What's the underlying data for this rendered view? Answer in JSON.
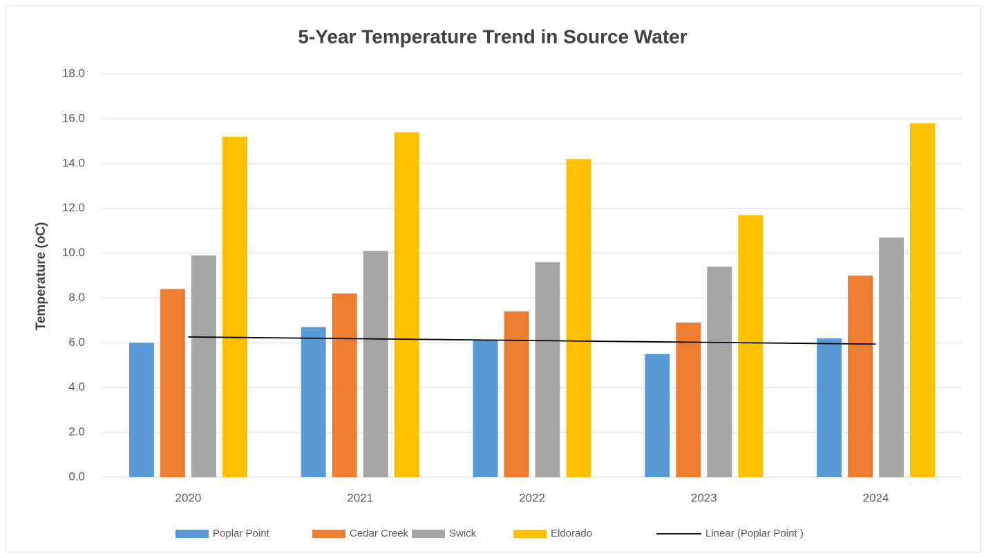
{
  "chart_data": {
    "type": "bar",
    "title": "5-Year Temperature Trend in Source Water",
    "y_label": "Temperature (oC)",
    "categories": [
      "2020",
      "2021",
      "2022",
      "2023",
      "2024"
    ],
    "series": [
      {
        "name": "Poplar Point",
        "color": "#5b9bd5",
        "values": [
          6.0,
          6.7,
          6.1,
          5.5,
          6.2
        ]
      },
      {
        "name": "Cedar Creek",
        "color": "#ed7d31",
        "values": [
          8.4,
          8.2,
          7.4,
          6.9,
          9.0
        ]
      },
      {
        "name": "Swick",
        "color": "#a5a5a5",
        "values": [
          9.9,
          10.1,
          9.6,
          9.4,
          10.7
        ]
      },
      {
        "name": "Eldorado",
        "color": "#ffc000",
        "values": [
          15.2,
          15.4,
          14.2,
          11.7,
          15.8
        ]
      }
    ],
    "trendline": {
      "name": "Linear (Poplar Point )",
      "color": "#000000",
      "values": [
        6.26,
        5.94
      ]
    },
    "ylim": [
      0,
      18
    ],
    "yticks": [
      {
        "value": 0,
        "label": "0.0"
      },
      {
        "value": 2,
        "label": "2.0"
      },
      {
        "value": 4,
        "label": "4.0"
      },
      {
        "value": 6,
        "label": "6.0"
      },
      {
        "value": 8,
        "label": "8.0"
      },
      {
        "value": 10,
        "label": "10.0"
      },
      {
        "value": 12,
        "label": "12.0"
      },
      {
        "value": 14,
        "label": "14.0"
      },
      {
        "value": 16,
        "label": "16.0"
      },
      {
        "value": 18,
        "label": "18.0"
      }
    ],
    "grid": true,
    "legend": "bottom"
  }
}
